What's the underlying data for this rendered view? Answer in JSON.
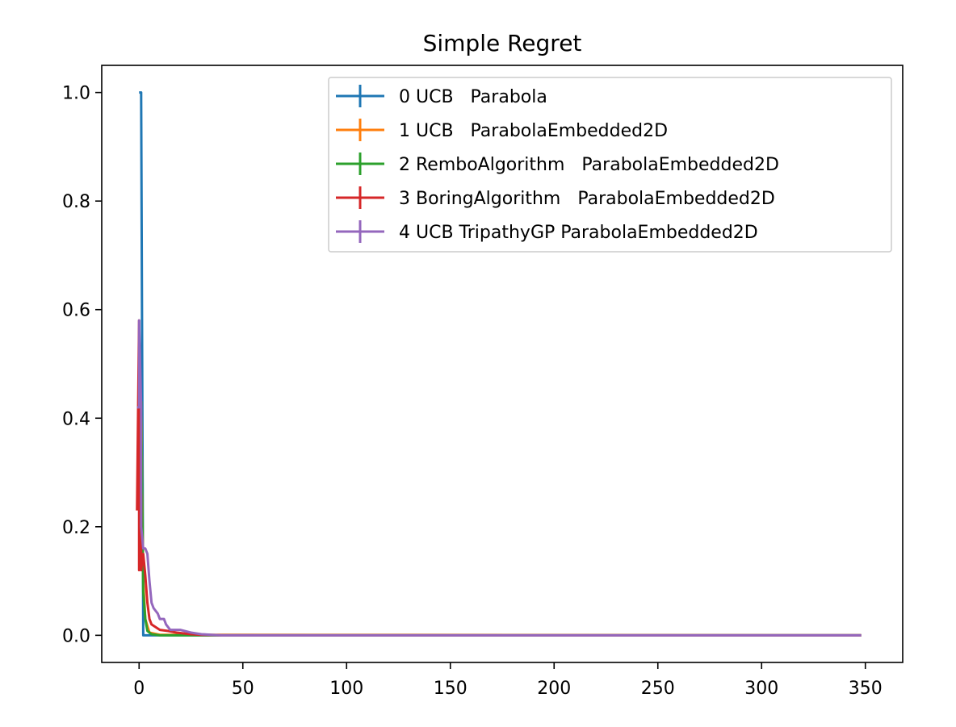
{
  "chart_data": {
    "type": "line",
    "title": "Simple Regret",
    "xlabel": "",
    "ylabel": "",
    "xlim": [
      -18,
      368
    ],
    "ylim": [
      -0.05,
      1.05
    ],
    "x_ticks": [
      0,
      50,
      100,
      150,
      200,
      250,
      300,
      350
    ],
    "x_tick_labels": [
      "0",
      "50",
      "100",
      "150",
      "200",
      "250",
      "300",
      "350"
    ],
    "y_ticks": [
      0.0,
      0.2,
      0.4,
      0.6,
      0.8,
      1.0
    ],
    "y_tick_labels": [
      "0.0",
      "0.2",
      "0.4",
      "0.6",
      "0.8",
      "1.0"
    ],
    "grid": false,
    "legend_position": "top-right",
    "series": [
      {
        "name": "0 UCB   Parabola",
        "color": "#1f77b4",
        "points": [
          [
            0,
            1.0
          ],
          [
            1,
            1.0
          ],
          [
            1,
            0.99
          ],
          [
            2,
            0.0
          ],
          [
            348,
            0.0
          ]
        ]
      },
      {
        "name": "1 UCB   ParabolaEmbedded2D",
        "color": "#ff7f0e",
        "points": [
          [
            0,
            0.43
          ],
          [
            1,
            0.43
          ],
          [
            2,
            0.1
          ],
          [
            3,
            0.03
          ],
          [
            5,
            0.005
          ],
          [
            10,
            0.001
          ],
          [
            348,
            0.0
          ]
        ]
      },
      {
        "name": "2 RemboAlgorithm   ParabolaEmbedded2D",
        "color": "#2ca02c",
        "points": [
          [
            0,
            0.43
          ],
          [
            1,
            0.43
          ],
          [
            2,
            0.08
          ],
          [
            3,
            0.03
          ],
          [
            4,
            0.008
          ],
          [
            6,
            0.002
          ],
          [
            10,
            0.0
          ],
          [
            348,
            0.0
          ]
        ]
      },
      {
        "name": "3 BoringAlgorithm   ParabolaEmbedded2D",
        "color": "#d62728",
        "points": [
          [
            -1,
            0.23
          ],
          [
            0,
            0.58
          ],
          [
            0,
            0.12
          ],
          [
            1,
            0.26
          ],
          [
            1,
            0.12
          ],
          [
            2,
            0.15
          ],
          [
            3,
            0.11
          ],
          [
            4,
            0.06
          ],
          [
            5,
            0.03
          ],
          [
            6,
            0.02
          ],
          [
            8,
            0.015
          ],
          [
            10,
            0.01
          ],
          [
            14,
            0.008
          ],
          [
            18,
            0.005
          ],
          [
            25,
            0.002
          ],
          [
            30,
            0.001
          ],
          [
            40,
            0.0
          ],
          [
            348,
            0.0
          ]
        ]
      },
      {
        "name": "4 UCB TripathyGP ParabolaEmbedded2D",
        "color": "#9467bd",
        "points": [
          [
            -1,
            0.42
          ],
          [
            0,
            0.42
          ],
          [
            0,
            0.58
          ],
          [
            1,
            0.42
          ],
          [
            1,
            0.2
          ],
          [
            2,
            0.16
          ],
          [
            3,
            0.16
          ],
          [
            4,
            0.15
          ],
          [
            5,
            0.1
          ],
          [
            6,
            0.06
          ],
          [
            7,
            0.05
          ],
          [
            9,
            0.04
          ],
          [
            10,
            0.03
          ],
          [
            12,
            0.03
          ],
          [
            13,
            0.02
          ],
          [
            15,
            0.01
          ],
          [
            20,
            0.01
          ],
          [
            25,
            0.005
          ],
          [
            30,
            0.002
          ],
          [
            35,
            0.001
          ],
          [
            40,
            0.0
          ],
          [
            348,
            0.0
          ]
        ]
      }
    ]
  }
}
